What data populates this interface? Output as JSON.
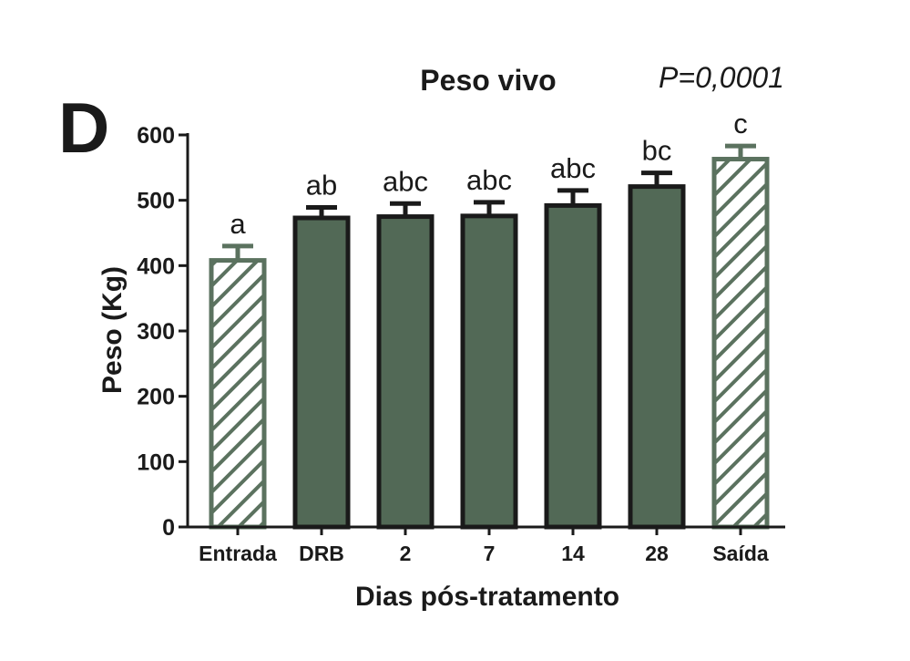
{
  "panel_label": "D",
  "chart_data": {
    "type": "bar",
    "title": "Peso vivo",
    "annotation": "P=0,0001",
    "xlabel": "Dias pós-tratamento",
    "ylabel": "Peso (Kg)",
    "ylim": [
      0,
      600
    ],
    "yticks": [
      0,
      100,
      200,
      300,
      400,
      500,
      600
    ],
    "grid": false,
    "categories": [
      "Entrada",
      "DRB",
      "2",
      "7",
      "14",
      "28",
      "Saída"
    ],
    "values": [
      408,
      473,
      475,
      476,
      492,
      521,
      563
    ],
    "errors": [
      22,
      16,
      20,
      21,
      23,
      21,
      20
    ],
    "significance": [
      "a",
      "ab",
      "abc",
      "abc",
      "abc",
      "bc",
      "c"
    ],
    "styles": [
      "hatched",
      "solid",
      "solid",
      "solid",
      "solid",
      "solid",
      "hatched"
    ],
    "colors": {
      "bar_fill": "#526956",
      "hatch_stroke": "#5b725f",
      "bar_outline": "#1a1a1a",
      "axis": "#1a1a1a"
    }
  }
}
